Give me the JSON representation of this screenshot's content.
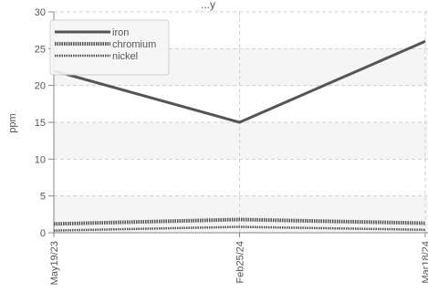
{
  "chart_data": {
    "type": "line",
    "title": "...y",
    "xlabel": "",
    "ylabel": "ppm",
    "ylim": [
      0,
      30
    ],
    "yticks": [
      0,
      5,
      10,
      15,
      20,
      25,
      30
    ],
    "categories": [
      "May19/23",
      "Feb25/24",
      "Mar18/24"
    ],
    "grid": true,
    "legend_position": "top-left",
    "series": [
      {
        "name": "iron",
        "values": [
          22,
          15,
          26
        ],
        "color": "#555555",
        "style": "solid"
      },
      {
        "name": "chromium",
        "values": [
          1.2,
          1.8,
          1.3
        ],
        "color": "#555555",
        "style": "dotted-heavy"
      },
      {
        "name": "nickel",
        "values": [
          0.3,
          0.8,
          0.4
        ],
        "color": "#555555",
        "style": "dotted"
      }
    ]
  }
}
